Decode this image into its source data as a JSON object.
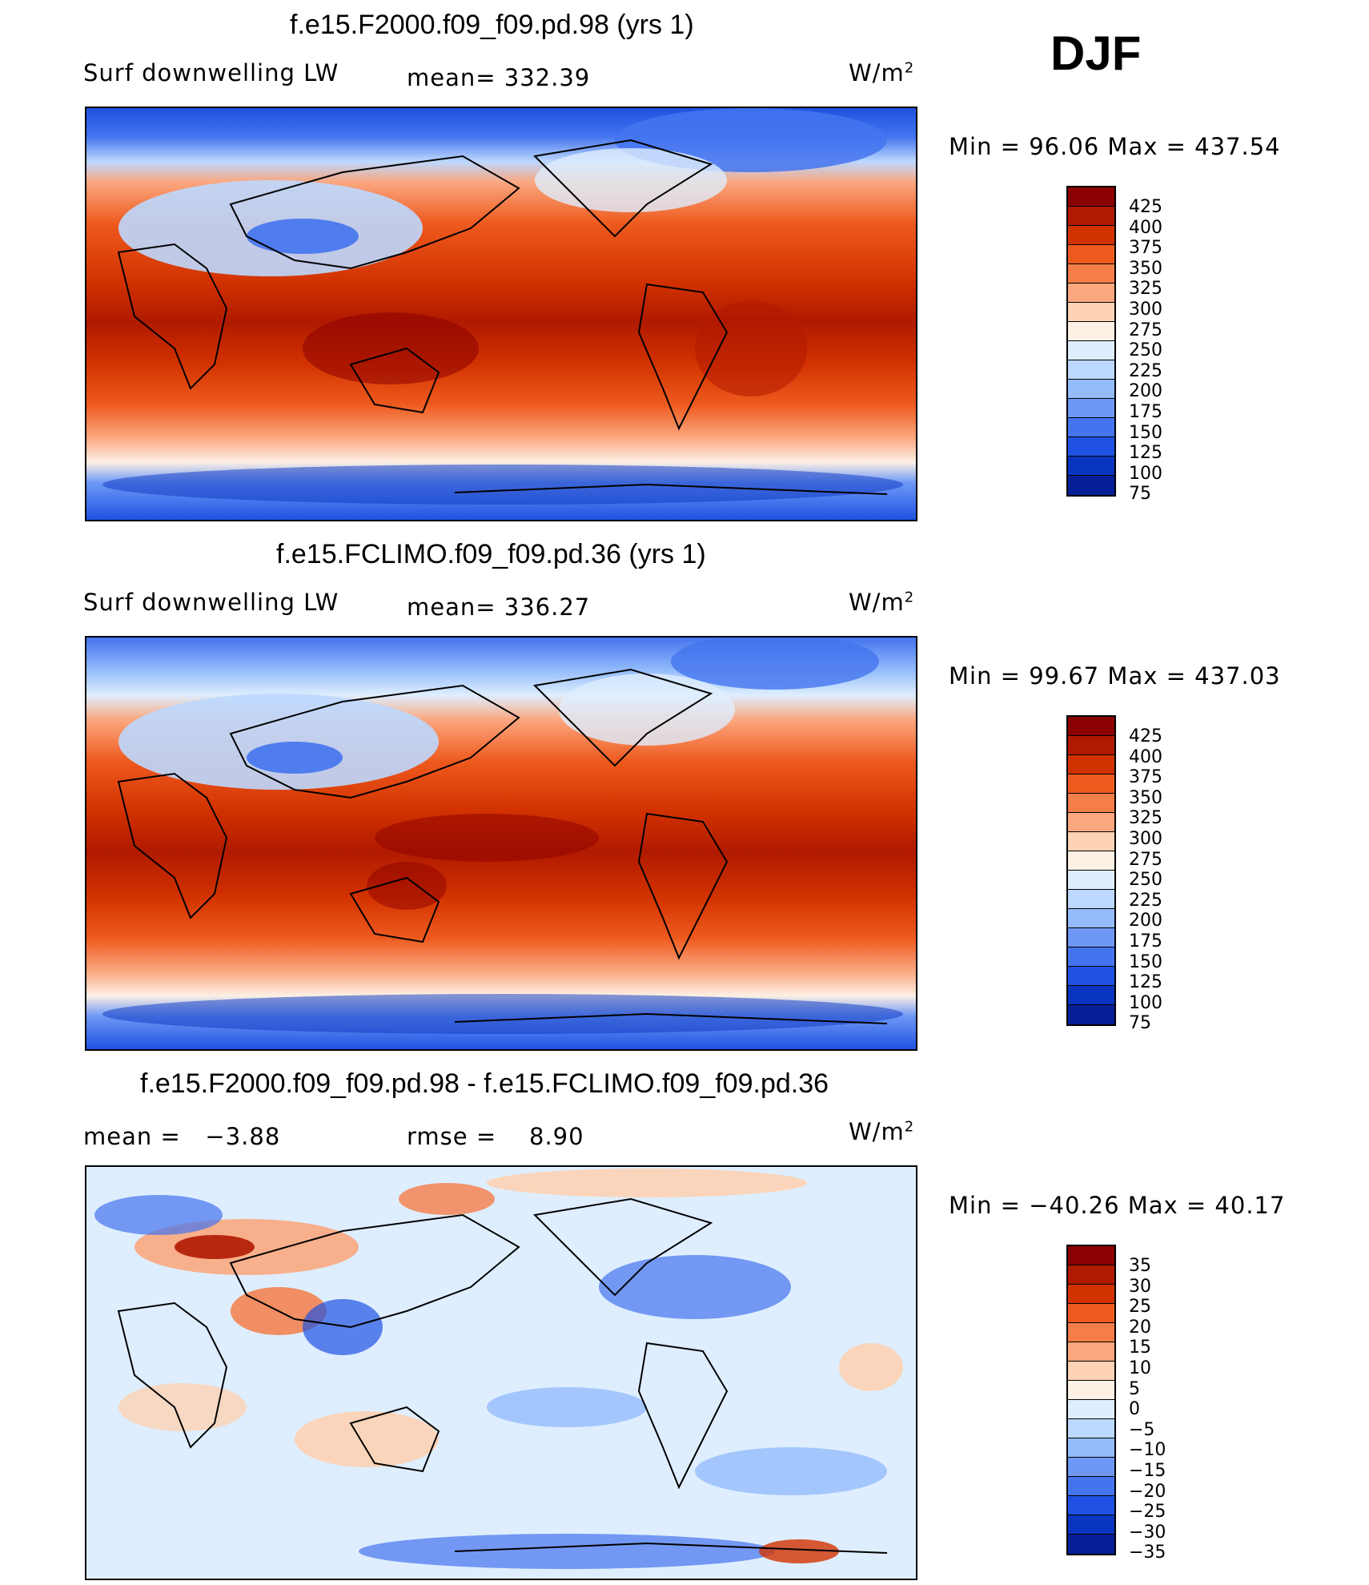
{
  "season": "DJF",
  "panels": [
    {
      "title": "f.e15.F2000.f09_f09.pd.98 (yrs 1)",
      "variable": "Surf downwelling LW",
      "mean_label": "mean=",
      "mean_value": "332.39",
      "units": "W/m",
      "units_sup": "2",
      "minmax": "Min =   96.06 Max = 437.54",
      "colorbar": {
        "colors": [
          "#8b0000",
          "#b01a00",
          "#d23200",
          "#ee5a1e",
          "#f57d48",
          "#fba77f",
          "#fdd2b4",
          "#fdf0e4",
          "#deeefe",
          "#bcd8fe",
          "#94bcfc",
          "#6e98f6",
          "#4474ee",
          "#1f52e2",
          "#0a35c0",
          "#061f96",
          "#03116b"
        ],
        "labels": [
          "425",
          "400",
          "375",
          "350",
          "325",
          "300",
          "275",
          "250",
          "225",
          "200",
          "175",
          "150",
          "125",
          "100",
          "75"
        ]
      }
    },
    {
      "title": "f.e15.FCLIMO.f09_f09.pd.36 (yrs 1)",
      "variable": "Surf downwelling LW",
      "mean_label": "mean=",
      "mean_value": "336.27",
      "units": "W/m",
      "units_sup": "2",
      "minmax": "Min =   99.67 Max = 437.03",
      "colorbar": {
        "colors": [
          "#8b0000",
          "#b01a00",
          "#d23200",
          "#ee5a1e",
          "#f57d48",
          "#fba77f",
          "#fdd2b4",
          "#fdf0e4",
          "#deeefe",
          "#bcd8fe",
          "#94bcfc",
          "#6e98f6",
          "#4474ee",
          "#1f52e2",
          "#0a35c0",
          "#061f96",
          "#03116b"
        ],
        "labels": [
          "425",
          "400",
          "375",
          "350",
          "325",
          "300",
          "275",
          "250",
          "225",
          "200",
          "175",
          "150",
          "125",
          "100",
          "75"
        ]
      }
    },
    {
      "title": "f.e15.F2000.f09_f09.pd.98 - f.e15.FCLIMO.f09_f09.pd.36",
      "mean_label": "mean =",
      "mean_value": "−3.88",
      "rmse_label": "rmse =",
      "rmse_value": "8.90",
      "units": "W/m",
      "units_sup": "2",
      "minmax": "Min = −40.26 Max =   40.17",
      "colorbar": {
        "colors": [
          "#8b0000",
          "#b01a00",
          "#d23200",
          "#ee5a1e",
          "#f57d48",
          "#fba77f",
          "#fdd2b4",
          "#fdf0e4",
          "#deeefe",
          "#bcd8fe",
          "#94bcfc",
          "#6e98f6",
          "#4474ee",
          "#1f52e2",
          "#0a35c0",
          "#061f96",
          "#03116b"
        ],
        "labels": [
          "35",
          "30",
          "25",
          "20",
          "15",
          "10",
          "5",
          "0",
          "−5",
          "−10",
          "−15",
          "−20",
          "−25",
          "−30",
          "−35"
        ]
      }
    }
  ]
}
